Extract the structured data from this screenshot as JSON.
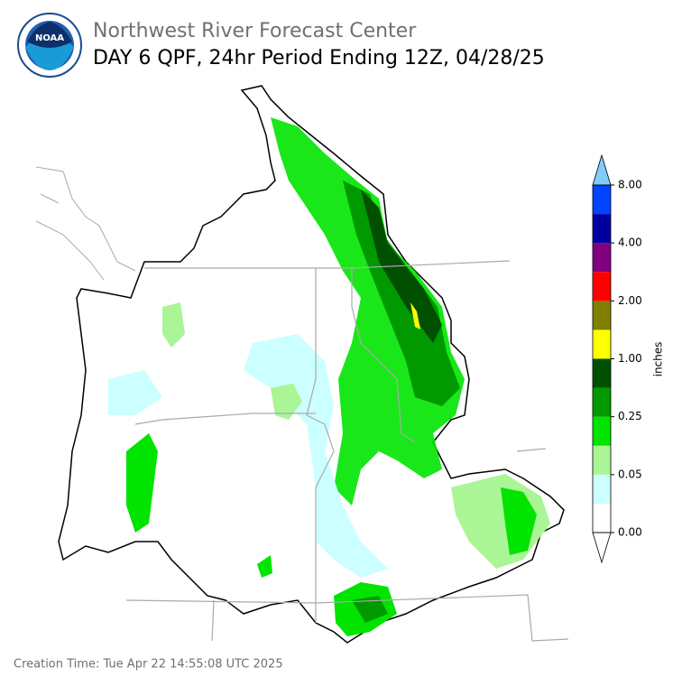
{
  "header": {
    "organization": "Northwest River Forecast Center",
    "title": "DAY 6 QPF, 24hr Period Ending 12Z, 04/28/25",
    "logo_text": "NOAA"
  },
  "colorbar": {
    "label": "inches",
    "ticks": [
      "0.00",
      "0.05",
      "0.25",
      "1.00",
      "2.00",
      "4.00",
      "8.00"
    ],
    "colors": [
      "#ffffff",
      "#ccffff",
      "#aaf595",
      "#00e400",
      "#009a00",
      "#005000",
      "#ffff00",
      "#7f7f00",
      "#ff0000",
      "#800080",
      "#0000a0",
      "#0044ff"
    ],
    "under_color": "#ffffff",
    "over_color": "#80ccff"
  },
  "footer": {
    "creation_time": "Creation Time: Tue Apr 22 14:55:08 UTC 2025"
  }
}
